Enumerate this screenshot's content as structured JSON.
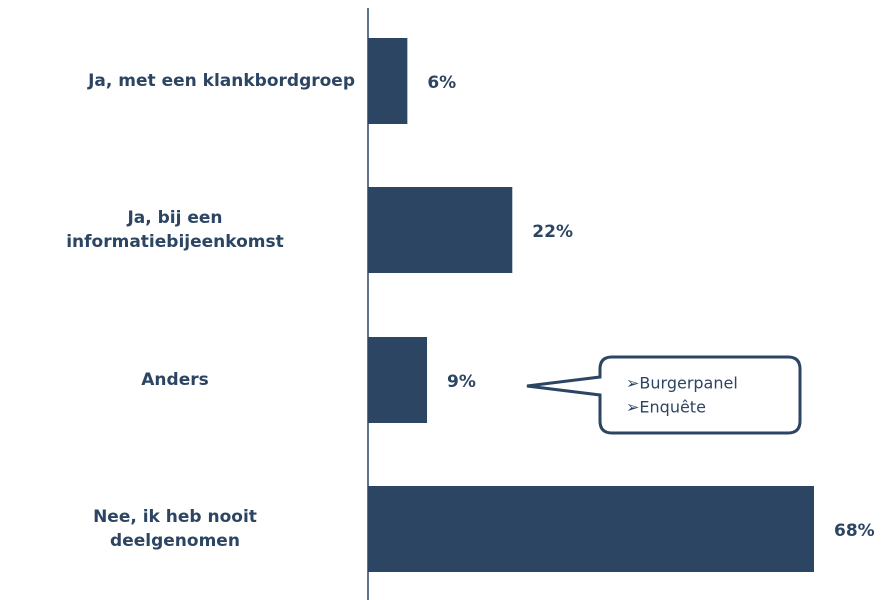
{
  "chart_data": {
    "type": "bar",
    "orientation": "horizontal",
    "categories": [
      "Ja, met een klankbordgroep",
      "Ja, bij een\ninformatiebijeenkomst",
      "Anders",
      "Nee, ik heb nooit\ndeelgenomen"
    ],
    "values": [
      6,
      22,
      9,
      68
    ],
    "value_labels": [
      "6%",
      "22%",
      "9%",
      "68%"
    ],
    "color": "#2c4563",
    "annotations": [
      "➢Burgerpanel",
      "➢Enquête"
    ]
  }
}
